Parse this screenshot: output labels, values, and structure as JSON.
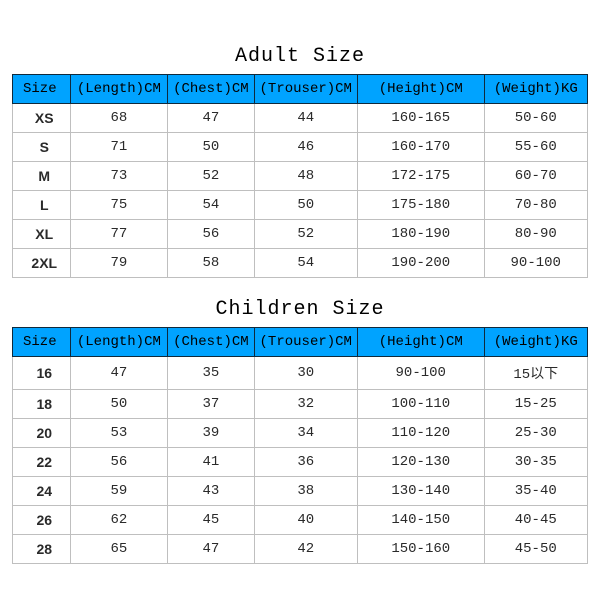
{
  "style": {
    "header_bg": "#00a3ff",
    "header_border": "#0f2a3d",
    "cell_border": "#bfbfbf",
    "title_font_size": 20,
    "cell_font_size": 14,
    "font_family": "Courier New"
  },
  "adult": {
    "title": "Adult Size",
    "columns": [
      "Size",
      "(Length)CM",
      "(Chest)CM",
      "(Trouser)CM",
      "(Height)CM",
      "(Weight)KG"
    ],
    "rows": [
      [
        "XS",
        "68",
        "47",
        "44",
        "160-165",
        "50-60"
      ],
      [
        "S",
        "71",
        "50",
        "46",
        "160-170",
        "55-60"
      ],
      [
        "M",
        "73",
        "52",
        "48",
        "172-175",
        "60-70"
      ],
      [
        "L",
        "75",
        "54",
        "50",
        "175-180",
        "70-80"
      ],
      [
        "XL",
        "77",
        "56",
        "52",
        "180-190",
        "80-90"
      ],
      [
        "2XL",
        "79",
        "58",
        "54",
        "190-200",
        "90-100"
      ]
    ]
  },
  "children": {
    "title": "Children Size",
    "columns": [
      "Size",
      "(Length)CM",
      "(Chest)CM",
      "(Trouser)CM",
      "(Height)CM",
      "(Weight)KG"
    ],
    "rows": [
      [
        "16",
        "47",
        "35",
        "30",
        "90-100",
        "15以下"
      ],
      [
        "18",
        "50",
        "37",
        "32",
        "100-110",
        "15-25"
      ],
      [
        "20",
        "53",
        "39",
        "34",
        "110-120",
        "25-30"
      ],
      [
        "22",
        "56",
        "41",
        "36",
        "120-130",
        "30-35"
      ],
      [
        "24",
        "59",
        "43",
        "38",
        "130-140",
        "35-40"
      ],
      [
        "26",
        "62",
        "45",
        "40",
        "140-150",
        "40-45"
      ],
      [
        "28",
        "65",
        "47",
        "42",
        "150-160",
        "45-50"
      ]
    ]
  }
}
